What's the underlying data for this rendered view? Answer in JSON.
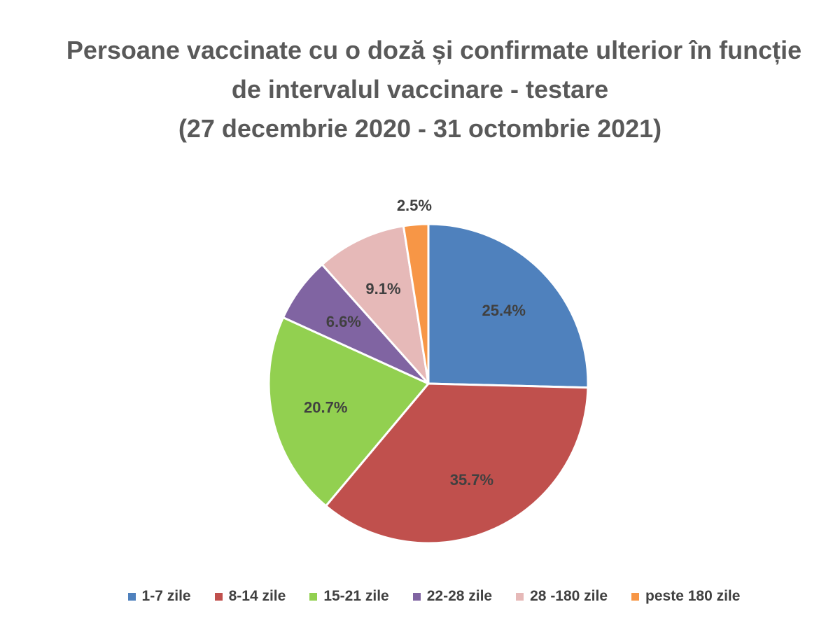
{
  "chart_data": {
    "type": "pie",
    "title_lines": [
      "Persoane vaccinate cu o doză și confirmate ulterior în funcție",
      "de intervalul vaccinare - testare",
      "(27 decembrie 2020 - 31 octombrie 2021)"
    ],
    "slices": [
      {
        "label": "1-7 zile",
        "value": 25.4,
        "display": "25.4%",
        "color": "#4F81BD"
      },
      {
        "label": "8-14 zile",
        "value": 35.7,
        "display": "35.7%",
        "color": "#C0504D"
      },
      {
        "label": "15-21 zile",
        "value": 20.7,
        "display": "20.7%",
        "color": "#92D050"
      },
      {
        "label": "22-28 zile",
        "value": 6.6,
        "display": "6.6%",
        "color": "#8064A2"
      },
      {
        "label": "28 -180 zile",
        "value": 9.1,
        "display": "9.1%",
        "color": "#E6B9B8"
      },
      {
        "label": "peste 180 zile",
        "value": 2.5,
        "display": "2.5%",
        "color": "#F79646"
      }
    ],
    "legend_position": "bottom",
    "start_angle": "12 o'clock, clockwise"
  }
}
